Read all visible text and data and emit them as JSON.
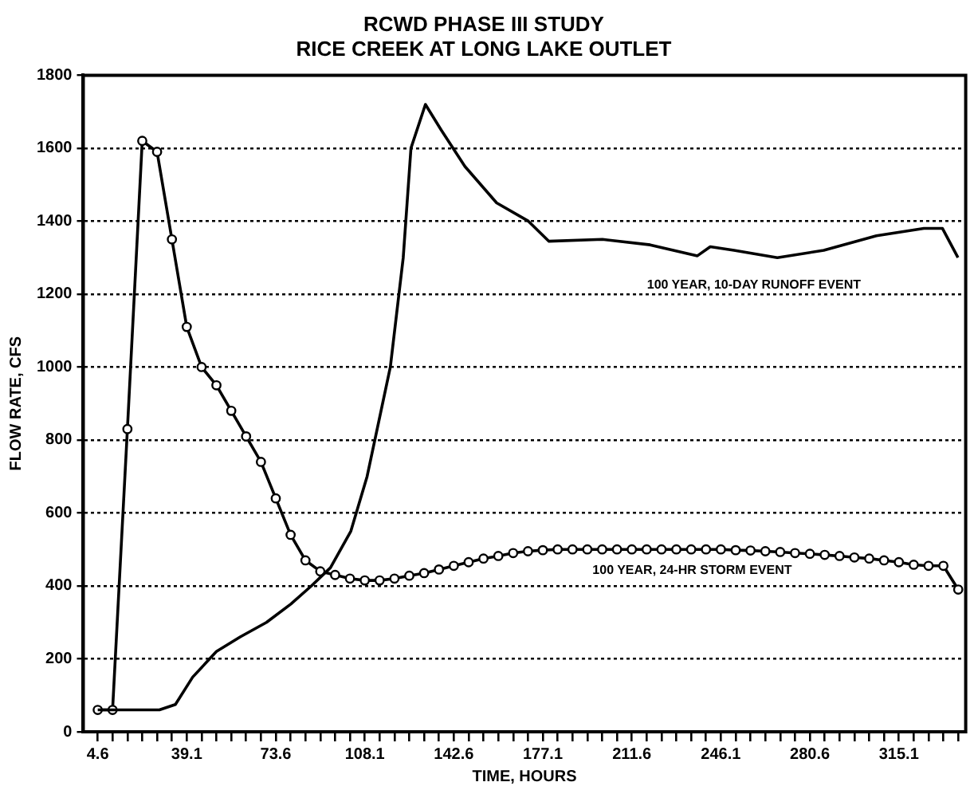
{
  "chart_data": {
    "type": "line",
    "title": "RCWD PHASE III STUDY\nRICE CREEK AT LONG LAKE OUTLET",
    "xlabel": "TIME, HOURS",
    "ylabel": "FLOW RATE, CFS",
    "xlim": [
      -1,
      341
    ],
    "ylim": [
      0,
      1800
    ],
    "xticks": [
      4.6,
      {
        "value": 10.35,
        "label": null
      },
      {
        "value": 16.1,
        "label": null
      },
      {
        "value": 21.85,
        "label": null
      },
      {
        "value": 27.6,
        "label": null
      },
      {
        "value": 33.35,
        "label": null
      },
      39.1,
      {
        "value": 44.85,
        "label": null
      },
      {
        "value": 50.6,
        "label": null
      },
      {
        "value": 56.35,
        "label": null
      },
      {
        "value": 62.1,
        "label": null
      },
      {
        "value": 67.85,
        "label": null
      },
      73.6,
      {
        "value": 79.35,
        "label": null
      },
      {
        "value": 85.1,
        "label": null
      },
      {
        "value": 90.85,
        "label": null
      },
      {
        "value": 96.6,
        "label": null
      },
      {
        "value": 102.35,
        "label": null
      },
      108.1,
      {
        "value": 113.85,
        "label": null
      },
      {
        "value": 119.6,
        "label": null
      },
      {
        "value": 125.35,
        "label": null
      },
      {
        "value": 131.1,
        "label": null
      },
      {
        "value": 136.85,
        "label": null
      },
      142.6,
      {
        "value": 148.35,
        "label": null
      },
      {
        "value": 154.1,
        "label": null
      },
      {
        "value": 159.85,
        "label": null
      },
      {
        "value": 165.6,
        "label": null
      },
      {
        "value": 171.35,
        "label": null
      },
      177.1,
      {
        "value": 182.85,
        "label": null
      },
      {
        "value": 188.6,
        "label": null
      },
      {
        "value": 194.35,
        "label": null
      },
      {
        "value": 200.1,
        "label": null
      },
      {
        "value": 205.85,
        "label": null
      },
      211.6,
      {
        "value": 217.35,
        "label": null
      },
      {
        "value": 223.1,
        "label": null
      },
      {
        "value": 228.85,
        "label": null
      },
      {
        "value": 234.6,
        "label": null
      },
      {
        "value": 240.35,
        "label": null
      },
      246.1,
      {
        "value": 251.85,
        "label": null
      },
      {
        "value": 257.6,
        "label": null
      },
      {
        "value": 263.35,
        "label": null
      },
      {
        "value": 269.1,
        "label": null
      },
      {
        "value": 274.85,
        "label": null
      },
      280.6,
      {
        "value": 286.35,
        "label": null
      },
      {
        "value": 292.1,
        "label": null
      },
      {
        "value": 297.85,
        "label": null
      },
      {
        "value": 303.6,
        "label": null
      },
      {
        "value": 309.35,
        "label": null
      },
      315.1,
      {
        "value": 320.85,
        "label": null
      },
      {
        "value": 326.6,
        "label": null
      },
      {
        "value": 332.35,
        "label": null
      },
      {
        "value": 338.1,
        "label": null
      }
    ],
    "yticks": [
      0,
      200,
      400,
      600,
      800,
      1000,
      1200,
      1400,
      1600,
      1800
    ],
    "grid": "y",
    "legend": false,
    "series": [
      {
        "name": "100 YEAR, 10-DAY RUNOFF EVENT",
        "color": "#000000",
        "marker": "none",
        "x": [
          4.6,
          28.5,
          34.7,
          41.4,
          50.6,
          59.8,
          70,
          79.4,
          87.4,
          94.8,
          102.7,
          109,
          118,
          123,
          126,
          131.6,
          137.7,
          146.9,
          159.2,
          171.5,
          179.4,
          200.2,
          218.7,
          237,
          242,
          251.2,
          268,
          286,
          306.4,
          324.8,
          332,
          338
        ],
        "values": [
          60,
          60,
          75,
          150,
          220,
          260,
          300,
          350,
          400,
          450,
          550,
          700,
          1000,
          1300,
          1600,
          1720,
          1650,
          1550,
          1450,
          1400,
          1345,
          1350,
          1335,
          1305,
          1330,
          1320,
          1300,
          1320,
          1360,
          1380,
          1380,
          1300
        ]
      },
      {
        "name": "100 YEAR, 24-HR STORM EVENT",
        "color": "#000000",
        "marker": "circle",
        "x": [
          4.6,
          10.35,
          16.1,
          21.85,
          27.6,
          33.35,
          39.1,
          44.85,
          50.6,
          56.35,
          62.1,
          67.85,
          73.6,
          79.35,
          85.1,
          90.85,
          96.6,
          102.35,
          108.1,
          113.85,
          119.6,
          125.35,
          131.1,
          136.85,
          142.6,
          148.35,
          154.1,
          159.85,
          165.6,
          171.35,
          177.1,
          182.85,
          188.6,
          194.35,
          200.1,
          205.85,
          211.6,
          217.35,
          223.1,
          228.85,
          234.6,
          240.35,
          246.1,
          251.85,
          257.6,
          263.35,
          269.1,
          274.85,
          280.6,
          286.35,
          292.1,
          297.85,
          303.6,
          309.35,
          315.1,
          320.85,
          326.6,
          332.35,
          338.1
        ],
        "values": [
          60,
          60,
          830,
          1620,
          1590,
          1350,
          1110,
          1000,
          950,
          880,
          810,
          740,
          640,
          540,
          470,
          440,
          430,
          420,
          415,
          415,
          420,
          428,
          435,
          445,
          455,
          465,
          475,
          482,
          490,
          495,
          498,
          500,
          500,
          500,
          500,
          500,
          500,
          500,
          500,
          500,
          500,
          500,
          500,
          498,
          497,
          495,
          493,
          490,
          488,
          485,
          482,
          478,
          475,
          470,
          465,
          458,
          455,
          455,
          390
        ]
      }
    ]
  }
}
